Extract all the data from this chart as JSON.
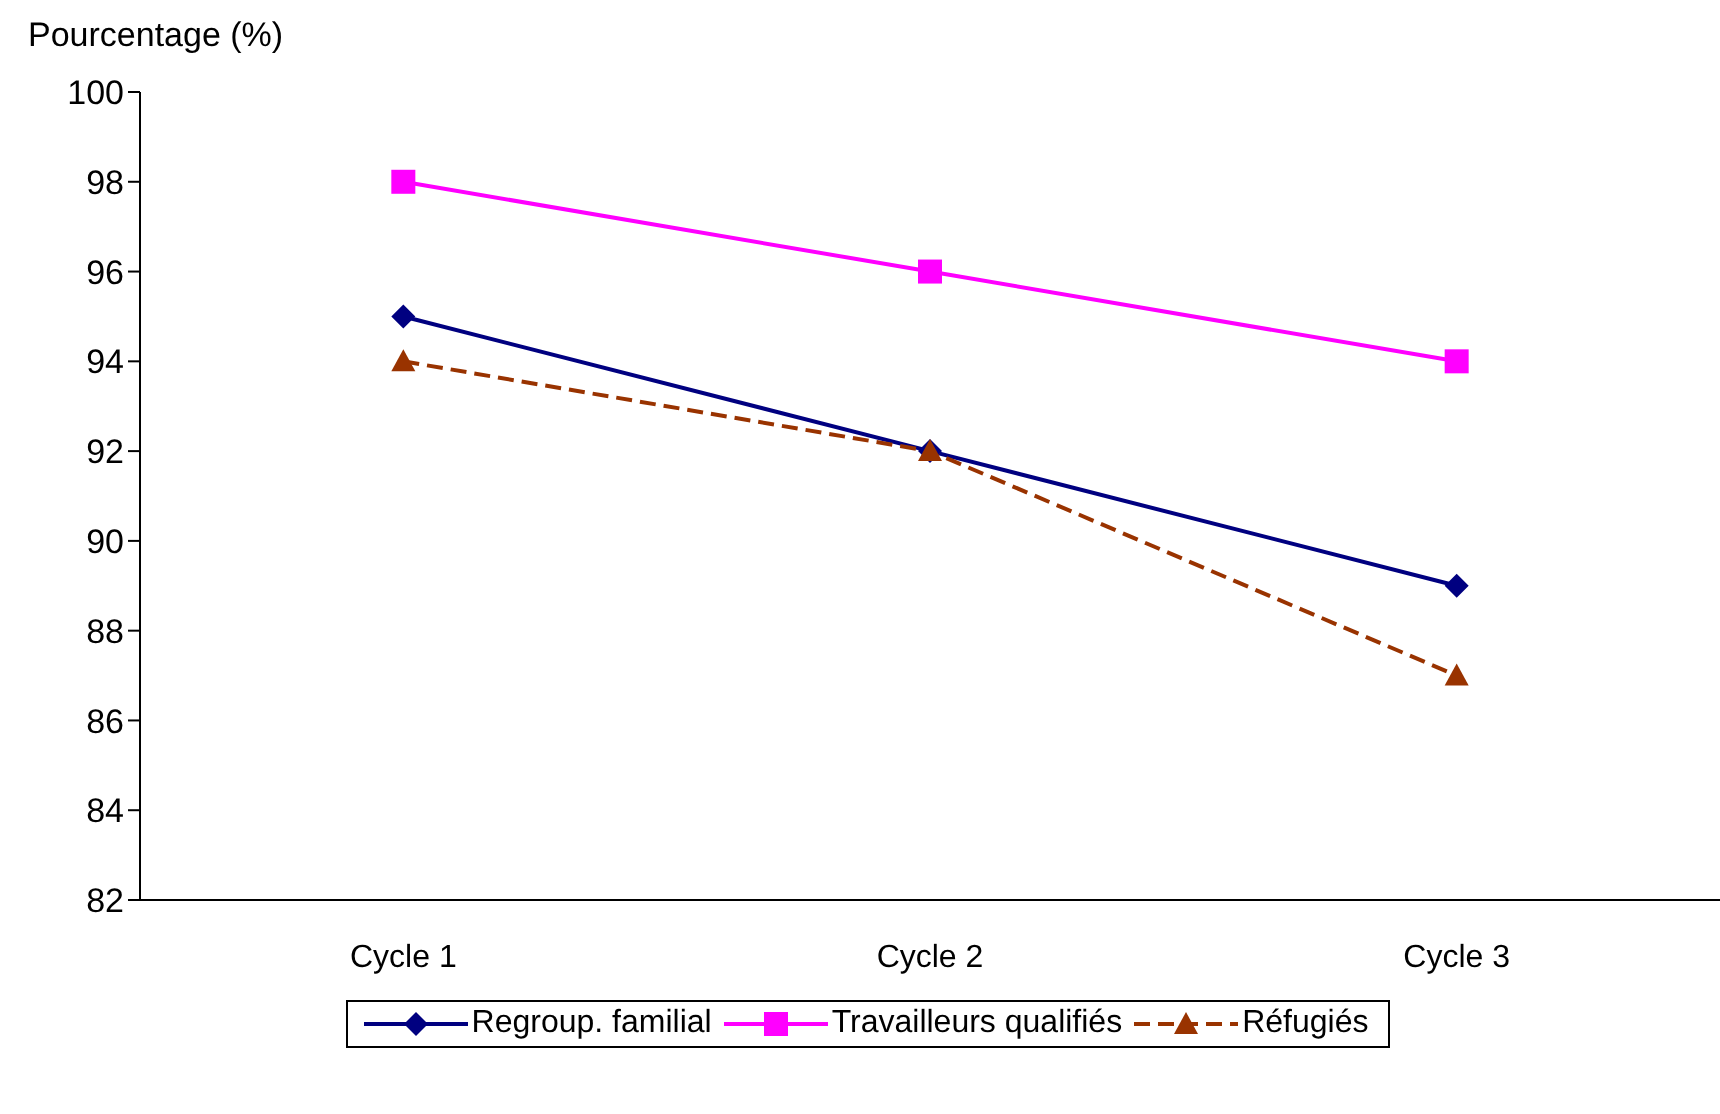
{
  "chart_data": {
    "type": "line",
    "ylabel": "Pourcentage (%)",
    "categories": [
      "Cycle 1",
      "Cycle 2",
      "Cycle 3"
    ],
    "ylim": [
      82,
      100
    ],
    "yticks": [
      82,
      84,
      86,
      88,
      90,
      92,
      94,
      96,
      98,
      100
    ],
    "grid": false,
    "legend": "bottom",
    "series": [
      {
        "name": "Regroup. familial",
        "color": "#000080",
        "values": [
          95,
          92,
          89
        ],
        "marker": "diamond",
        "line_style": "solid"
      },
      {
        "name": "Travailleurs qualifiés",
        "color": "#ff00ff",
        "values": [
          98,
          96,
          94
        ],
        "marker": "square",
        "line_style": "solid"
      },
      {
        "name": "Réfugiés",
        "color": "#993300",
        "values": [
          94,
          92,
          87
        ],
        "marker": "triangle",
        "line_style": "dashed"
      }
    ]
  }
}
